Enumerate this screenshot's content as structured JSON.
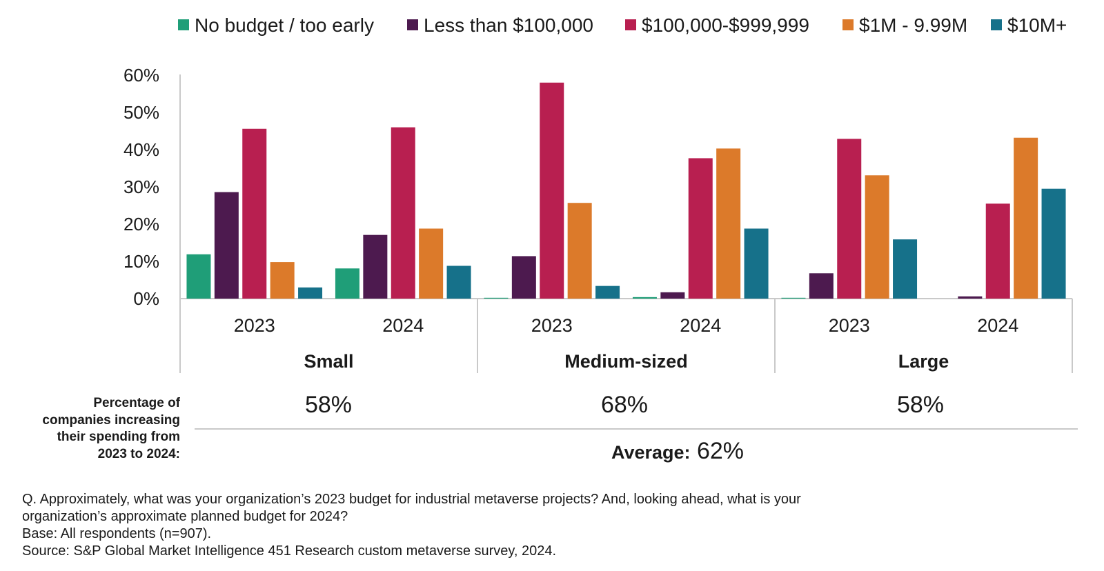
{
  "chart_data": {
    "type": "bar",
    "ylim": [
      0,
      60
    ],
    "yticks": [
      "0%",
      "10%",
      "20%",
      "30%",
      "40%",
      "50%",
      "60%"
    ],
    "series": [
      {
        "name": "No budget / too early",
        "color": "#1f9e78"
      },
      {
        "name": "Less than $100,000",
        "color": "#4d1a4f"
      },
      {
        "name": "$100,000-$999,999",
        "color": "#b81f50"
      },
      {
        "name": "$1M - 9.99M",
        "color": "#dc7a2a"
      },
      {
        "name": "$10M+",
        "color": "#16718a"
      }
    ],
    "groups": [
      {
        "name": "Small",
        "years": [
          {
            "label": "2023",
            "values": [
              11.9,
              28.6,
              45.6,
              9.8,
              3.0
            ]
          },
          {
            "label": "2024",
            "values": [
              8.1,
              17.1,
              46.0,
              18.8,
              8.8
            ]
          }
        ]
      },
      {
        "name": "Medium-sized",
        "years": [
          {
            "label": "2023",
            "values": [
              0.2,
              11.4,
              58.0,
              25.7,
              3.4
            ]
          },
          {
            "label": "2024",
            "values": [
              0.4,
              1.7,
              37.7,
              40.3,
              18.8
            ]
          }
        ]
      },
      {
        "name": "Large",
        "years": [
          {
            "label": "2023",
            "values": [
              0.2,
              6.8,
              42.9,
              33.1,
              15.9
            ]
          },
          {
            "label": "2024",
            "values": [
              0.0,
              0.6,
              25.5,
              43.2,
              29.5
            ]
          }
        ]
      }
    ]
  },
  "increase": {
    "title_lines": [
      "Percentage of",
      "companies increasing",
      "their spending from",
      "2023 to 2024:"
    ],
    "values": [
      "58%",
      "68%",
      "58%"
    ],
    "average_label": "Average:",
    "average_value": "62%"
  },
  "footnote": {
    "question_line1": "Q. Approximately, what was your organization’s 2023 budget for industrial metaverse projects? And, looking ahead, what is your",
    "question_line2": "organization’s approximate planned budget for 2024?",
    "base": "Base: All respondents (n=907).",
    "source": "Source: S&P Global Market Intelligence 451 Research custom metaverse survey, 2024."
  }
}
